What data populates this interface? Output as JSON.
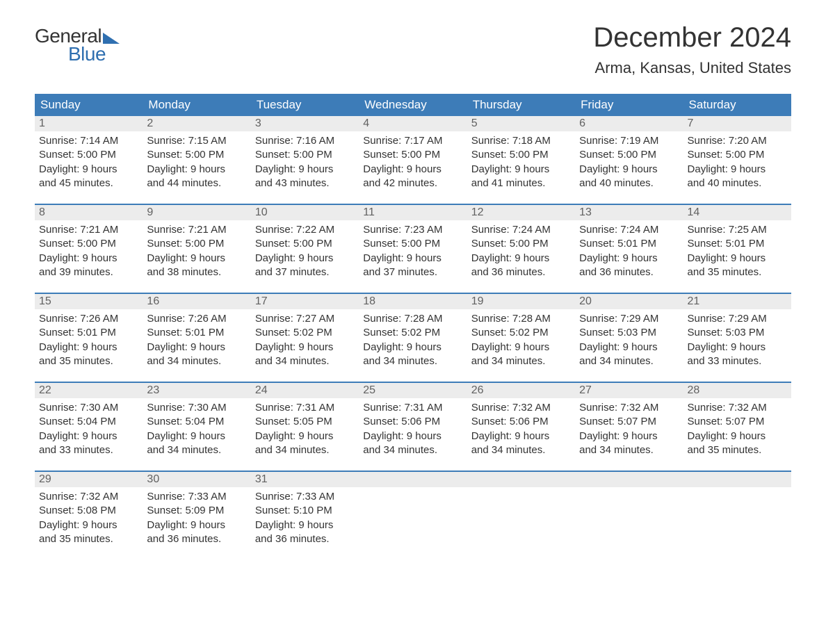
{
  "logo": {
    "word1": "General",
    "word2": "Blue"
  },
  "title": "December 2024",
  "location": "Arma, Kansas, United States",
  "colors": {
    "brand_blue": "#2f6fb0",
    "header_blue": "#3d7cb8",
    "row_gray": "#ececec",
    "text": "#333333",
    "muted": "#616161",
    "background": "#ffffff"
  },
  "typography": {
    "title_fontsize": 40,
    "location_fontsize": 22,
    "dow_fontsize": 17,
    "daynum_fontsize": 16,
    "body_fontsize": 15
  },
  "days_of_week": [
    "Sunday",
    "Monday",
    "Tuesday",
    "Wednesday",
    "Thursday",
    "Friday",
    "Saturday"
  ],
  "weeks": [
    [
      {
        "n": "1",
        "sunrise": "Sunrise: 7:14 AM",
        "sunset": "Sunset: 5:00 PM",
        "d1": "Daylight: 9 hours",
        "d2": "and 45 minutes."
      },
      {
        "n": "2",
        "sunrise": "Sunrise: 7:15 AM",
        "sunset": "Sunset: 5:00 PM",
        "d1": "Daylight: 9 hours",
        "d2": "and 44 minutes."
      },
      {
        "n": "3",
        "sunrise": "Sunrise: 7:16 AM",
        "sunset": "Sunset: 5:00 PM",
        "d1": "Daylight: 9 hours",
        "d2": "and 43 minutes."
      },
      {
        "n": "4",
        "sunrise": "Sunrise: 7:17 AM",
        "sunset": "Sunset: 5:00 PM",
        "d1": "Daylight: 9 hours",
        "d2": "and 42 minutes."
      },
      {
        "n": "5",
        "sunrise": "Sunrise: 7:18 AM",
        "sunset": "Sunset: 5:00 PM",
        "d1": "Daylight: 9 hours",
        "d2": "and 41 minutes."
      },
      {
        "n": "6",
        "sunrise": "Sunrise: 7:19 AM",
        "sunset": "Sunset: 5:00 PM",
        "d1": "Daylight: 9 hours",
        "d2": "and 40 minutes."
      },
      {
        "n": "7",
        "sunrise": "Sunrise: 7:20 AM",
        "sunset": "Sunset: 5:00 PM",
        "d1": "Daylight: 9 hours",
        "d2": "and 40 minutes."
      }
    ],
    [
      {
        "n": "8",
        "sunrise": "Sunrise: 7:21 AM",
        "sunset": "Sunset: 5:00 PM",
        "d1": "Daylight: 9 hours",
        "d2": "and 39 minutes."
      },
      {
        "n": "9",
        "sunrise": "Sunrise: 7:21 AM",
        "sunset": "Sunset: 5:00 PM",
        "d1": "Daylight: 9 hours",
        "d2": "and 38 minutes."
      },
      {
        "n": "10",
        "sunrise": "Sunrise: 7:22 AM",
        "sunset": "Sunset: 5:00 PM",
        "d1": "Daylight: 9 hours",
        "d2": "and 37 minutes."
      },
      {
        "n": "11",
        "sunrise": "Sunrise: 7:23 AM",
        "sunset": "Sunset: 5:00 PM",
        "d1": "Daylight: 9 hours",
        "d2": "and 37 minutes."
      },
      {
        "n": "12",
        "sunrise": "Sunrise: 7:24 AM",
        "sunset": "Sunset: 5:00 PM",
        "d1": "Daylight: 9 hours",
        "d2": "and 36 minutes."
      },
      {
        "n": "13",
        "sunrise": "Sunrise: 7:24 AM",
        "sunset": "Sunset: 5:01 PM",
        "d1": "Daylight: 9 hours",
        "d2": "and 36 minutes."
      },
      {
        "n": "14",
        "sunrise": "Sunrise: 7:25 AM",
        "sunset": "Sunset: 5:01 PM",
        "d1": "Daylight: 9 hours",
        "d2": "and 35 minutes."
      }
    ],
    [
      {
        "n": "15",
        "sunrise": "Sunrise: 7:26 AM",
        "sunset": "Sunset: 5:01 PM",
        "d1": "Daylight: 9 hours",
        "d2": "and 35 minutes."
      },
      {
        "n": "16",
        "sunrise": "Sunrise: 7:26 AM",
        "sunset": "Sunset: 5:01 PM",
        "d1": "Daylight: 9 hours",
        "d2": "and 34 minutes."
      },
      {
        "n": "17",
        "sunrise": "Sunrise: 7:27 AM",
        "sunset": "Sunset: 5:02 PM",
        "d1": "Daylight: 9 hours",
        "d2": "and 34 minutes."
      },
      {
        "n": "18",
        "sunrise": "Sunrise: 7:28 AM",
        "sunset": "Sunset: 5:02 PM",
        "d1": "Daylight: 9 hours",
        "d2": "and 34 minutes."
      },
      {
        "n": "19",
        "sunrise": "Sunrise: 7:28 AM",
        "sunset": "Sunset: 5:02 PM",
        "d1": "Daylight: 9 hours",
        "d2": "and 34 minutes."
      },
      {
        "n": "20",
        "sunrise": "Sunrise: 7:29 AM",
        "sunset": "Sunset: 5:03 PM",
        "d1": "Daylight: 9 hours",
        "d2": "and 34 minutes."
      },
      {
        "n": "21",
        "sunrise": "Sunrise: 7:29 AM",
        "sunset": "Sunset: 5:03 PM",
        "d1": "Daylight: 9 hours",
        "d2": "and 33 minutes."
      }
    ],
    [
      {
        "n": "22",
        "sunrise": "Sunrise: 7:30 AM",
        "sunset": "Sunset: 5:04 PM",
        "d1": "Daylight: 9 hours",
        "d2": "and 33 minutes."
      },
      {
        "n": "23",
        "sunrise": "Sunrise: 7:30 AM",
        "sunset": "Sunset: 5:04 PM",
        "d1": "Daylight: 9 hours",
        "d2": "and 34 minutes."
      },
      {
        "n": "24",
        "sunrise": "Sunrise: 7:31 AM",
        "sunset": "Sunset: 5:05 PM",
        "d1": "Daylight: 9 hours",
        "d2": "and 34 minutes."
      },
      {
        "n": "25",
        "sunrise": "Sunrise: 7:31 AM",
        "sunset": "Sunset: 5:06 PM",
        "d1": "Daylight: 9 hours",
        "d2": "and 34 minutes."
      },
      {
        "n": "26",
        "sunrise": "Sunrise: 7:32 AM",
        "sunset": "Sunset: 5:06 PM",
        "d1": "Daylight: 9 hours",
        "d2": "and 34 minutes."
      },
      {
        "n": "27",
        "sunrise": "Sunrise: 7:32 AM",
        "sunset": "Sunset: 5:07 PM",
        "d1": "Daylight: 9 hours",
        "d2": "and 34 minutes."
      },
      {
        "n": "28",
        "sunrise": "Sunrise: 7:32 AM",
        "sunset": "Sunset: 5:07 PM",
        "d1": "Daylight: 9 hours",
        "d2": "and 35 minutes."
      }
    ],
    [
      {
        "n": "29",
        "sunrise": "Sunrise: 7:32 AM",
        "sunset": "Sunset: 5:08 PM",
        "d1": "Daylight: 9 hours",
        "d2": "and 35 minutes."
      },
      {
        "n": "30",
        "sunrise": "Sunrise: 7:33 AM",
        "sunset": "Sunset: 5:09 PM",
        "d1": "Daylight: 9 hours",
        "d2": "and 36 minutes."
      },
      {
        "n": "31",
        "sunrise": "Sunrise: 7:33 AM",
        "sunset": "Sunset: 5:10 PM",
        "d1": "Daylight: 9 hours",
        "d2": "and 36 minutes."
      },
      {
        "n": "",
        "sunrise": "",
        "sunset": "",
        "d1": "",
        "d2": ""
      },
      {
        "n": "",
        "sunrise": "",
        "sunset": "",
        "d1": "",
        "d2": ""
      },
      {
        "n": "",
        "sunrise": "",
        "sunset": "",
        "d1": "",
        "d2": ""
      },
      {
        "n": "",
        "sunrise": "",
        "sunset": "",
        "d1": "",
        "d2": ""
      }
    ]
  ]
}
